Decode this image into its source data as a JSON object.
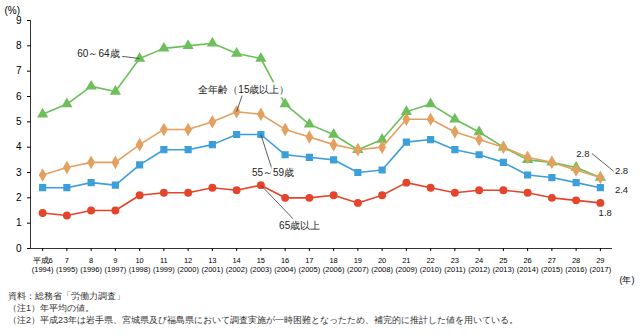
{
  "chart_data": {
    "type": "line",
    "y_label": "(%)",
    "x_label": "(年)",
    "categories": [
      "平成6\n(1994)",
      "7\n(1995)",
      "8\n(1996)",
      "9\n(1997)",
      "10\n(1998)",
      "11\n(1999)",
      "12\n(2000)",
      "13\n(2001)",
      "14\n(2002)",
      "15\n(2003)",
      "16\n(2004)",
      "17\n(2005)",
      "18\n(2006)",
      "19\n(2007)",
      "20\n(2008)",
      "21\n(2009)",
      "22\n(2010)",
      "23\n(2011)",
      "24\n(2012)",
      "25\n(2013)",
      "26\n(2014)",
      "27\n(2015)",
      "28\n(2016)",
      "29\n(2017)"
    ],
    "series": [
      {
        "name": "60～64歳",
        "color": "#6cbf5a",
        "marker": "triangle",
        "values": [
          5.3,
          5.7,
          6.4,
          6.2,
          7.5,
          7.9,
          8.0,
          8.1,
          7.7,
          7.5,
          5.7,
          4.9,
          4.5,
          3.9,
          4.3,
          5.4,
          5.7,
          5.1,
          4.6,
          4.0,
          3.5,
          3.4,
          3.2,
          2.8
        ]
      },
      {
        "name": "全年齢（15歳以上）",
        "color": "#e4a05f",
        "marker": "diamond",
        "values": [
          2.9,
          3.2,
          3.4,
          3.4,
          4.1,
          4.7,
          4.7,
          5.0,
          5.4,
          5.3,
          4.7,
          4.4,
          4.1,
          3.9,
          4.0,
          5.1,
          5.1,
          4.6,
          4.3,
          4.0,
          3.6,
          3.4,
          3.1,
          2.8
        ]
      },
      {
        "name": "55～59歳",
        "color": "#3d9fd9",
        "marker": "square",
        "values": [
          2.4,
          2.4,
          2.6,
          2.5,
          3.3,
          3.9,
          3.9,
          4.1,
          4.5,
          4.5,
          3.7,
          3.6,
          3.5,
          3.0,
          3.1,
          4.2,
          4.3,
          3.9,
          3.7,
          3.4,
          2.9,
          2.8,
          2.6,
          2.4
        ]
      },
      {
        "name": "65歳以上",
        "color": "#e4452b",
        "marker": "circle",
        "values": [
          1.4,
          1.3,
          1.5,
          1.5,
          2.1,
          2.2,
          2.2,
          2.4,
          2.3,
          2.5,
          2.0,
          2.0,
          2.1,
          1.8,
          2.1,
          2.6,
          2.4,
          2.2,
          2.3,
          2.3,
          2.2,
          2.0,
          1.9,
          1.8
        ]
      }
    ],
    "annotations": [
      {
        "text": "2.8",
        "series": "60～64歳"
      },
      {
        "text": "2.8",
        "series": "全年齢（15歳以上）"
      },
      {
        "text": "2.4",
        "series": "55～59歳"
      },
      {
        "text": "1.8",
        "series": "65歳以上"
      }
    ],
    "ylim": [
      0,
      9
    ],
    "yticks": [
      0,
      1,
      2,
      3,
      4,
      5,
      6,
      7,
      8,
      9
    ],
    "grid": false,
    "notes": [
      "資料：総務省「労働力調査」",
      "（注1）年平均の値。",
      "（注2）平成23年は岩手県、宮城県及び福島県において調査実施が一時困難となったため、補完的に推計した値を用いている。"
    ]
  }
}
